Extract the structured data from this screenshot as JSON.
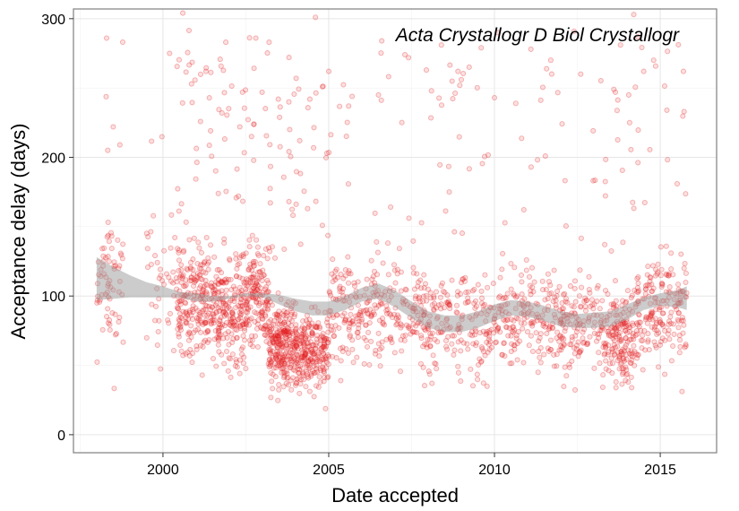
{
  "chart_data": {
    "type": "scatter",
    "xlabel": "Date accepted",
    "ylabel": "Acceptance delay (days)",
    "annotation": "Acta Crystallogr D Biol Crystallogr",
    "xlim": [
      1997.3,
      2016.7
    ],
    "ylim": [
      -13,
      307
    ],
    "x_ticks": [
      2000,
      2005,
      2010,
      2015
    ],
    "x_tick_labels": [
      "2000",
      "2005",
      "2010",
      "2015"
    ],
    "y_ticks": [
      0,
      100,
      200,
      300
    ],
    "y_tick_labels": [
      "0",
      "100",
      "200",
      "300"
    ],
    "grid": true,
    "legend": "none",
    "point_color": "#e41a1c",
    "smooth_fill_color": "#999999",
    "smooth_band": {
      "x": [
        1998.0,
        1998.5,
        1999.0,
        1999.5,
        2000.0,
        2000.5,
        2001.0,
        2001.5,
        2002.0,
        2002.5,
        2003.0,
        2003.5,
        2004.0,
        2004.5,
        2005.0,
        2005.5,
        2006.0,
        2006.5,
        2007.0,
        2007.5,
        2008.0,
        2008.5,
        2009.0,
        2009.5,
        2010.0,
        2010.5,
        2011.0,
        2011.5,
        2012.0,
        2012.5,
        2013.0,
        2013.5,
        2014.0,
        2014.5,
        2015.0,
        2015.5,
        2015.8
      ],
      "lower": [
        97,
        98,
        99,
        99,
        99,
        99,
        96,
        96,
        98,
        100,
        99,
        94,
        89,
        86,
        86,
        90,
        96,
        98,
        92,
        84,
        77,
        74,
        74,
        77,
        82,
        86,
        85,
        82,
        78,
        77,
        77,
        78,
        83,
        90,
        93,
        92,
        90
      ],
      "upper": [
        128,
        121,
        115,
        110,
        107,
        103,
        102,
        100,
        100,
        102,
        102,
        101,
        98,
        96,
        96,
        100,
        106,
        109,
        104,
        96,
        89,
        86,
        86,
        89,
        94,
        97,
        96,
        93,
        89,
        87,
        88,
        89,
        94,
        99,
        102,
        104,
        107
      ]
    },
    "scatter_clusters": [
      {
        "x": [
          1998.0,
          1998.8
        ],
        "y_mean": 105,
        "y_sd": 65,
        "n": 70
      },
      {
        "x": [
          1999.5,
          2000.4
        ],
        "y_mean": 110,
        "y_sd": 60,
        "n": 40
      },
      {
        "x": [
          2000.4,
          2001.5
        ],
        "y_mean": 95,
        "y_sd": 50,
        "n": 240
      },
      {
        "x": [
          2001.5,
          2002.5
        ],
        "y_mean": 90,
        "y_sd": 48,
        "n": 230
      },
      {
        "x": [
          2002.5,
          2003.2
        ],
        "y_mean": 100,
        "y_sd": 48,
        "n": 170
      },
      {
        "x": [
          2003.2,
          2004.0
        ],
        "y_mean": 65,
        "y_sd": 38,
        "n": 260
      },
      {
        "x": [
          2004.0,
          2005.0
        ],
        "y_mean": 60,
        "y_sd": 35,
        "n": 250
      },
      {
        "x": [
          2005.0,
          2006.5
        ],
        "y_mean": 90,
        "y_sd": 50,
        "n": 160
      },
      {
        "x": [
          2006.5,
          2008.0
        ],
        "y_mean": 90,
        "y_sd": 50,
        "n": 150
      },
      {
        "x": [
          2008.0,
          2010.0
        ],
        "y_mean": 80,
        "y_sd": 45,
        "n": 200
      },
      {
        "x": [
          2010.0,
          2012.0
        ],
        "y_mean": 85,
        "y_sd": 45,
        "n": 200
      },
      {
        "x": [
          2012.0,
          2013.3
        ],
        "y_mean": 80,
        "y_sd": 45,
        "n": 140
      },
      {
        "x": [
          2013.3,
          2014.3
        ],
        "y_mean": 70,
        "y_sd": 42,
        "n": 190
      },
      {
        "x": [
          2014.3,
          2015.8
        ],
        "y_mean": 90,
        "y_sd": 50,
        "n": 200
      }
    ],
    "outliers": [
      [
        1998.3,
        286
      ],
      [
        1998.5,
        222
      ],
      [
        1998.7,
        209
      ],
      [
        2000.2,
        275
      ],
      [
        2000.6,
        304
      ],
      [
        2001.3,
        262
      ],
      [
        2002.4,
        247
      ],
      [
        2002.8,
        286
      ],
      [
        2003.2,
        283
      ],
      [
        2003.8,
        272
      ],
      [
        2004.6,
        301
      ],
      [
        2005.0,
        262
      ],
      [
        2005.6,
        237
      ],
      [
        2006.5,
        245
      ],
      [
        2006.6,
        284
      ],
      [
        2007.3,
        274
      ],
      [
        2008.1,
        248
      ],
      [
        2008.4,
        281
      ],
      [
        2008.9,
        262
      ],
      [
        2009.6,
        279
      ],
      [
        2010.0,
        243
      ],
      [
        2010.1,
        290
      ],
      [
        2011.1,
        278
      ],
      [
        2011.7,
        270
      ],
      [
        2012.6,
        260
      ],
      [
        2013.6,
        249
      ],
      [
        2013.8,
        281
      ],
      [
        2014.2,
        303
      ],
      [
        2014.5,
        262
      ],
      [
        2014.8,
        270
      ],
      [
        2015.2,
        234
      ],
      [
        2015.7,
        262
      ],
      [
        2009.0,
        256
      ],
      [
        2012.4,
        291
      ]
    ]
  }
}
